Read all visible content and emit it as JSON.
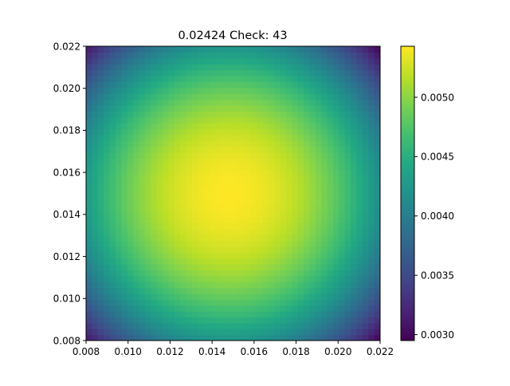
{
  "chart_data": {
    "type": "heatmap",
    "title": "0.02424 Check: 43",
    "xlabel": "",
    "ylabel": "",
    "xlim": [
      0.008,
      0.022
    ],
    "ylim": [
      0.008,
      0.022
    ],
    "x_ticks": [
      0.008,
      0.01,
      0.012,
      0.014,
      0.016,
      0.018,
      0.02,
      0.022
    ],
    "x_tick_labels": [
      "0.008",
      "0.010",
      "0.012",
      "0.014",
      "0.016",
      "0.018",
      "0.020",
      "0.022"
    ],
    "y_ticks": [
      0.008,
      0.01,
      0.012,
      0.014,
      0.016,
      0.018,
      0.02,
      0.022
    ],
    "y_tick_labels": [
      "0.008",
      "0.010",
      "0.012",
      "0.014",
      "0.016",
      "0.018",
      "0.020",
      "0.022"
    ],
    "colormap": "viridis",
    "colorbar": {
      "vmin": 0.00295,
      "vmax": 0.00543,
      "ticks": [
        0.003,
        0.0035,
        0.004,
        0.0045,
        0.005
      ],
      "tick_labels": [
        "0.0030",
        "0.0035",
        "0.0040",
        "0.0045",
        "0.0050"
      ]
    },
    "field": {
      "description_free": true,
      "peak_x": 0.0148,
      "peak_y": 0.015,
      "peak_value": 0.00543,
      "corner_value": 0.00295,
      "shape": "radial"
    },
    "grid": false
  }
}
